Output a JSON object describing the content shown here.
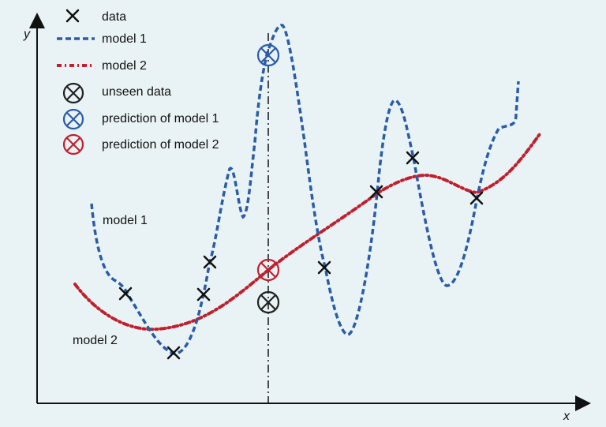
{
  "axes": {
    "x_label": "x",
    "y_label": "y"
  },
  "legend": [
    {
      "label": "data"
    },
    {
      "label": "model 1"
    },
    {
      "label": "model 2"
    },
    {
      "label": "unseen data"
    },
    {
      "label": "prediction of model 1"
    },
    {
      "label": "prediction of model 2"
    }
  ],
  "curve_labels": {
    "model1": "model 1",
    "model2": "model 2"
  },
  "colors": {
    "background": "#e9f3f6",
    "axis": "#111111",
    "data": "#111111",
    "model1": "#2a5ca8",
    "model2": "#c0202e",
    "unseen": "#222222"
  }
}
